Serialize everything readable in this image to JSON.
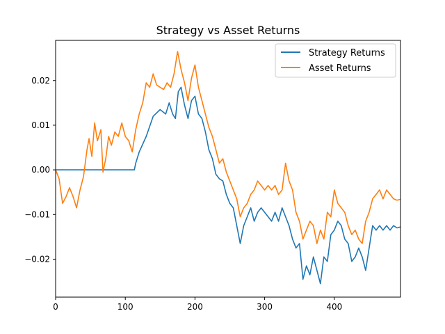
{
  "chart_data": {
    "type": "line",
    "title": "Strategy vs Asset Returns",
    "xlabel": "",
    "ylabel": "",
    "xlim": [
      0,
      495
    ],
    "ylim": [
      -0.0285,
      0.029
    ],
    "xticks": [
      0,
      100,
      200,
      300,
      400
    ],
    "xtick_labels": [
      "0",
      "100",
      "200",
      "300",
      "400"
    ],
    "yticks": [
      -0.02,
      -0.01,
      0.0,
      0.01,
      0.02
    ],
    "ytick_labels": [
      "−0.02",
      "−0.01",
      "0.00",
      "0.01",
      "0.02"
    ],
    "grid": false,
    "legend_position": "top-right",
    "series": [
      {
        "name": "Strategy Returns",
        "color": "#1f77b4",
        "points": [
          [
            0,
            0.0
          ],
          [
            50,
            0.0
          ],
          [
            100,
            0.0
          ],
          [
            113,
            0.0
          ],
          [
            115,
            0.0015
          ],
          [
            120,
            0.004
          ],
          [
            130,
            0.0075
          ],
          [
            140,
            0.012
          ],
          [
            150,
            0.0135
          ],
          [
            158,
            0.0125
          ],
          [
            163,
            0.015
          ],
          [
            168,
            0.0125
          ],
          [
            172,
            0.0115
          ],
          [
            176,
            0.0175
          ],
          [
            180,
            0.0185
          ],
          [
            185,
            0.0145
          ],
          [
            190,
            0.0115
          ],
          [
            195,
            0.0155
          ],
          [
            200,
            0.0165
          ],
          [
            205,
            0.0125
          ],
          [
            210,
            0.0115
          ],
          [
            215,
            0.0085
          ],
          [
            220,
            0.0045
          ],
          [
            225,
            0.0025
          ],
          [
            230,
            -0.001
          ],
          [
            235,
            -0.002
          ],
          [
            240,
            -0.0025
          ],
          [
            245,
            -0.0055
          ],
          [
            250,
            -0.0075
          ],
          [
            255,
            -0.0085
          ],
          [
            260,
            -0.0125
          ],
          [
            265,
            -0.0165
          ],
          [
            270,
            -0.0125
          ],
          [
            275,
            -0.0105
          ],
          [
            280,
            -0.0085
          ],
          [
            285,
            -0.0115
          ],
          [
            290,
            -0.0095
          ],
          [
            295,
            -0.0085
          ],
          [
            300,
            -0.0095
          ],
          [
            305,
            -0.0105
          ],
          [
            310,
            -0.0115
          ],
          [
            315,
            -0.0095
          ],
          [
            320,
            -0.0115
          ],
          [
            325,
            -0.0085
          ],
          [
            330,
            -0.0105
          ],
          [
            335,
            -0.0125
          ],
          [
            340,
            -0.0155
          ],
          [
            345,
            -0.0175
          ],
          [
            350,
            -0.0165
          ],
          [
            355,
            -0.0245
          ],
          [
            360,
            -0.0215
          ],
          [
            365,
            -0.0235
          ],
          [
            370,
            -0.0195
          ],
          [
            375,
            -0.0225
          ],
          [
            380,
            -0.0255
          ],
          [
            385,
            -0.0195
          ],
          [
            390,
            -0.0205
          ],
          [
            395,
            -0.0145
          ],
          [
            400,
            -0.0135
          ],
          [
            405,
            -0.0115
          ],
          [
            410,
            -0.0125
          ],
          [
            415,
            -0.0155
          ],
          [
            420,
            -0.0165
          ],
          [
            425,
            -0.0205
          ],
          [
            430,
            -0.0195
          ],
          [
            435,
            -0.0175
          ],
          [
            440,
            -0.0195
          ],
          [
            445,
            -0.0225
          ],
          [
            450,
            -0.0175
          ],
          [
            455,
            -0.0125
          ],
          [
            460,
            -0.0135
          ],
          [
            465,
            -0.0125
          ],
          [
            470,
            -0.0135
          ],
          [
            475,
            -0.0125
          ],
          [
            480,
            -0.0135
          ],
          [
            485,
            -0.0125
          ],
          [
            490,
            -0.013
          ],
          [
            495,
            -0.0128
          ]
        ]
      },
      {
        "name": "Asset Returns",
        "color": "#ff7f0e",
        "points": [
          [
            0,
            0.0
          ],
          [
            5,
            -0.002
          ],
          [
            10,
            -0.0075
          ],
          [
            15,
            -0.006
          ],
          [
            20,
            -0.004
          ],
          [
            25,
            -0.006
          ],
          [
            30,
            -0.0085
          ],
          [
            35,
            -0.0045
          ],
          [
            40,
            -0.0015
          ],
          [
            45,
            0.0045
          ],
          [
            48,
            0.007
          ],
          [
            52,
            0.003
          ],
          [
            56,
            0.0105
          ],
          [
            60,
            0.0065
          ],
          [
            65,
            0.009
          ],
          [
            68,
            -0.0005
          ],
          [
            72,
            0.0025
          ],
          [
            76,
            0.0075
          ],
          [
            80,
            0.0055
          ],
          [
            85,
            0.0085
          ],
          [
            90,
            0.0075
          ],
          [
            95,
            0.0105
          ],
          [
            100,
            0.0075
          ],
          [
            105,
            0.0065
          ],
          [
            110,
            0.004
          ],
          [
            115,
            0.009
          ],
          [
            120,
            0.0125
          ],
          [
            125,
            0.015
          ],
          [
            130,
            0.0195
          ],
          [
            135,
            0.0185
          ],
          [
            140,
            0.0215
          ],
          [
            145,
            0.019
          ],
          [
            150,
            0.0185
          ],
          [
            155,
            0.018
          ],
          [
            160,
            0.0195
          ],
          [
            165,
            0.0185
          ],
          [
            170,
            0.0215
          ],
          [
            175,
            0.0265
          ],
          [
            180,
            0.0225
          ],
          [
            185,
            0.0195
          ],
          [
            190,
            0.0155
          ],
          [
            195,
            0.0205
          ],
          [
            200,
            0.0235
          ],
          [
            205,
            0.0185
          ],
          [
            210,
            0.0155
          ],
          [
            215,
            0.0125
          ],
          [
            220,
            0.0095
          ],
          [
            225,
            0.0075
          ],
          [
            230,
            0.0045
          ],
          [
            235,
            0.0015
          ],
          [
            240,
            0.0025
          ],
          [
            245,
            -0.0005
          ],
          [
            250,
            -0.0025
          ],
          [
            255,
            -0.0045
          ],
          [
            260,
            -0.0065
          ],
          [
            265,
            -0.0105
          ],
          [
            270,
            -0.0085
          ],
          [
            275,
            -0.0075
          ],
          [
            280,
            -0.0055
          ],
          [
            285,
            -0.0045
          ],
          [
            290,
            -0.0025
          ],
          [
            295,
            -0.0035
          ],
          [
            300,
            -0.0045
          ],
          [
            305,
            -0.0035
          ],
          [
            310,
            -0.0045
          ],
          [
            315,
            -0.0035
          ],
          [
            320,
            -0.0055
          ],
          [
            325,
            -0.0045
          ],
          [
            330,
            0.0015
          ],
          [
            335,
            -0.0025
          ],
          [
            340,
            -0.0045
          ],
          [
            345,
            -0.0095
          ],
          [
            350,
            -0.0115
          ],
          [
            355,
            -0.0155
          ],
          [
            360,
            -0.0135
          ],
          [
            365,
            -0.0115
          ],
          [
            370,
            -0.0125
          ],
          [
            375,
            -0.0165
          ],
          [
            380,
            -0.0135
          ],
          [
            385,
            -0.0155
          ],
          [
            390,
            -0.0095
          ],
          [
            395,
            -0.0105
          ],
          [
            400,
            -0.0045
          ],
          [
            405,
            -0.0075
          ],
          [
            410,
            -0.0085
          ],
          [
            415,
            -0.0095
          ],
          [
            420,
            -0.0125
          ],
          [
            425,
            -0.0145
          ],
          [
            430,
            -0.0135
          ],
          [
            435,
            -0.0155
          ],
          [
            440,
            -0.0165
          ],
          [
            445,
            -0.0115
          ],
          [
            450,
            -0.0095
          ],
          [
            455,
            -0.0065
          ],
          [
            460,
            -0.0055
          ],
          [
            465,
            -0.0045
          ],
          [
            470,
            -0.0065
          ],
          [
            475,
            -0.0045
          ],
          [
            480,
            -0.0055
          ],
          [
            485,
            -0.0065
          ],
          [
            490,
            -0.0068
          ],
          [
            495,
            -0.0066
          ]
        ]
      }
    ]
  }
}
